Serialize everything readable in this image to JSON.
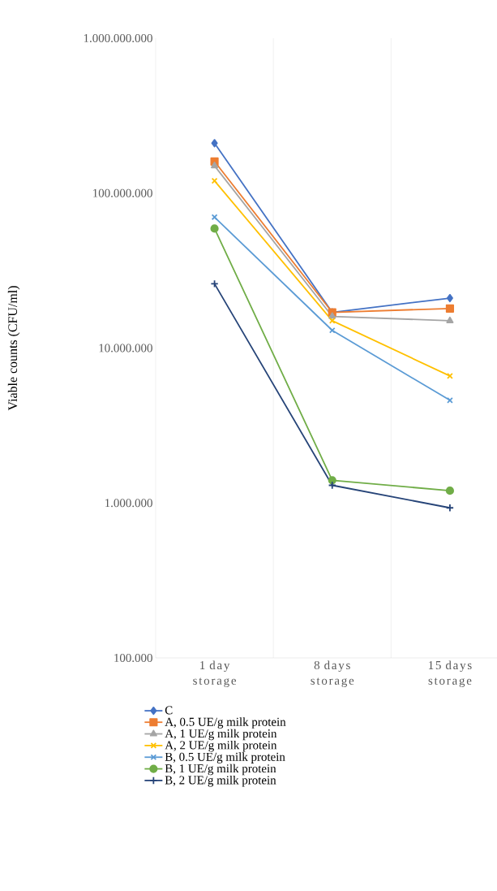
{
  "chart_data": {
    "type": "line",
    "ylabel": "Viable counts (CFU/ml)",
    "categories": [
      "1 day storage",
      "8 days storage",
      "15 days storage"
    ],
    "series": [
      {
        "name": "C",
        "color": "#4472c4",
        "marker": "diamond",
        "values": [
          210000000,
          17000000,
          21000000
        ]
      },
      {
        "name": "A, 0.5 UE/g milk protein",
        "color": "#ed7d31",
        "marker": "square",
        "values": [
          160000000,
          17000000,
          18000000
        ]
      },
      {
        "name": "A, 1 UE/g milk protein",
        "color": "#a5a5a5",
        "marker": "triangle",
        "values": [
          150000000,
          16000000,
          15000000
        ]
      },
      {
        "name": "A, 2 UE/g milk protein",
        "color": "#ffc000",
        "marker": "cross",
        "values": [
          120000000,
          15000000,
          6600000
        ]
      },
      {
        "name": "B, 0.5 UE/g milk protein",
        "color": "#5b9bd5",
        "marker": "cross",
        "values": [
          70000000,
          13000000,
          4600000
        ]
      },
      {
        "name": "B, 1 UE/g milk protein",
        "color": "#70ad47",
        "marker": "circle",
        "values": [
          59000000,
          1400000,
          1200000
        ]
      },
      {
        "name": "B, 2 UE/g milk protein",
        "color": "#264478",
        "marker": "plus",
        "values": [
          26000000,
          1300000,
          930000
        ]
      }
    ],
    "log": true,
    "ylim": [
      100000,
      1000000000
    ],
    "yticks": [
      {
        "value": 100000,
        "label": "100.000"
      },
      {
        "value": 1000000,
        "label": "1.000.000"
      },
      {
        "value": 10000000,
        "label": "10.000.000"
      },
      {
        "value": 100000000,
        "label": "100.000.000"
      },
      {
        "value": 1000000000,
        "label": "1.000.000.000"
      }
    ],
    "grid": "x",
    "legend": "bottom",
    "line_style": "solid"
  }
}
